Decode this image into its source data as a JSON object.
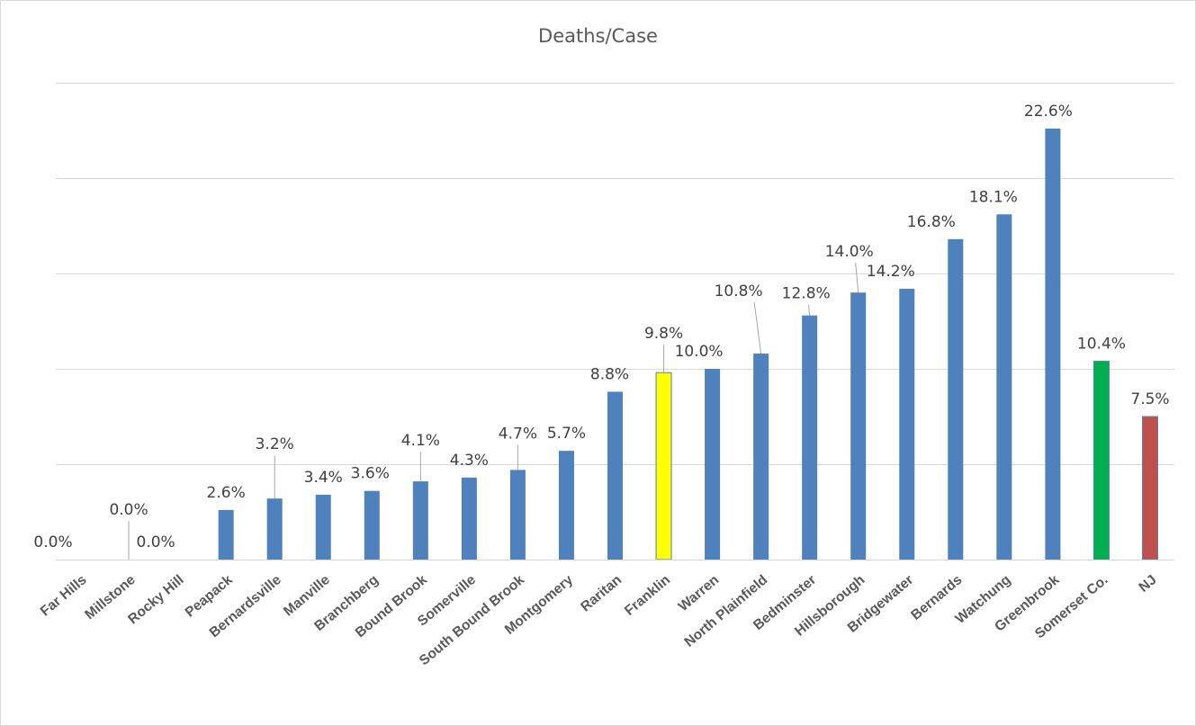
{
  "chart_data": {
    "type": "bar",
    "title": "Deaths/Case",
    "xlabel": "",
    "ylabel": "",
    "ylim": [
      0,
      25
    ],
    "grid": true,
    "gridlines": [
      0,
      5,
      10,
      15,
      20,
      25
    ],
    "categories": [
      "Far Hills",
      "Millstone",
      "Rocky Hill",
      "Peapack",
      "Bernardsville",
      "Manville",
      "Branchberg",
      "Bound Brook",
      "Somerville",
      "South Bound Brook",
      "Montgomery",
      "Raritan",
      "Franklin",
      "Warren",
      "North Plainfield",
      "Bedminster",
      "Hillsborough",
      "Bridgewater",
      "Bernards",
      "Watchung",
      "Greenbrook",
      "Somerset Co.",
      "NJ"
    ],
    "values": [
      0.0,
      0.0,
      0.0,
      2.6,
      3.2,
      3.4,
      3.6,
      4.1,
      4.3,
      4.7,
      5.7,
      8.8,
      9.8,
      10.0,
      10.8,
      12.8,
      14.0,
      14.2,
      16.8,
      18.1,
      22.6,
      10.4,
      7.5
    ],
    "labels": [
      "0.0%",
      "0.0%",
      "0.0%",
      "2.6%",
      "3.2%",
      "3.4%",
      "3.6%",
      "4.1%",
      "4.3%",
      "4.7%",
      "5.7%",
      "8.8%",
      "9.8%",
      "10.0%",
      "10.8%",
      "12.8%",
      "14.0%",
      "14.2%",
      "16.8%",
      "18.1%",
      "22.6%",
      "10.4%",
      "7.5%"
    ],
    "bar_colors": [
      "#4f81bd",
      "#4f81bd",
      "#4f81bd",
      "#4f81bd",
      "#4f81bd",
      "#4f81bd",
      "#4f81bd",
      "#4f81bd",
      "#4f81bd",
      "#4f81bd",
      "#4f81bd",
      "#4f81bd",
      "#ffff00",
      "#4f81bd",
      "#4f81bd",
      "#4f81bd",
      "#4f81bd",
      "#4f81bd",
      "#4f81bd",
      "#4f81bd",
      "#4f81bd",
      "#00b050",
      "#c0504d"
    ],
    "default_color": "#4f81bd",
    "highlight_colors": {
      "Franklin": "#ffff00",
      "Somerset Co.": "#00b050",
      "NJ": "#c0504d"
    }
  }
}
